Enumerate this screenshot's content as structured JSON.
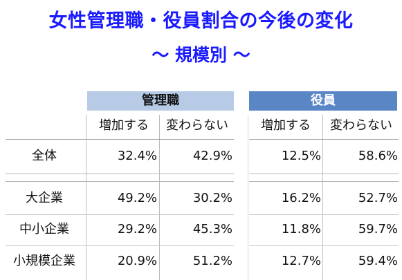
{
  "title": {
    "line1": "女性管理職・役員割合の今後の変化",
    "line2": "～ 規模別 ～"
  },
  "groups": {
    "managers": "管理職",
    "executives": "役員"
  },
  "subheaders": {
    "mgr_increase": "増加する",
    "mgr_nochange": "変わらない",
    "exec_increase": "増加する",
    "exec_nochange": "変わらない"
  },
  "colors": {
    "title": "#1a1aff",
    "managers_header_bg": "#b7cbe6",
    "executives_header_bg": "#5b86c6"
  },
  "rows": [
    {
      "label": "全体",
      "values": [
        "32.4%",
        "42.9%",
        "12.5%",
        "58.6%"
      ]
    },
    {
      "label": "大企業",
      "values": [
        "49.2%",
        "30.2%",
        "16.2%",
        "52.7%"
      ]
    },
    {
      "label": "中小企業",
      "values": [
        "29.2%",
        "45.3%",
        "11.8%",
        "59.7%"
      ]
    },
    {
      "label": "小規模企業",
      "values": [
        "20.9%",
        "51.2%",
        "12.7%",
        "59.4%"
      ]
    }
  ]
}
